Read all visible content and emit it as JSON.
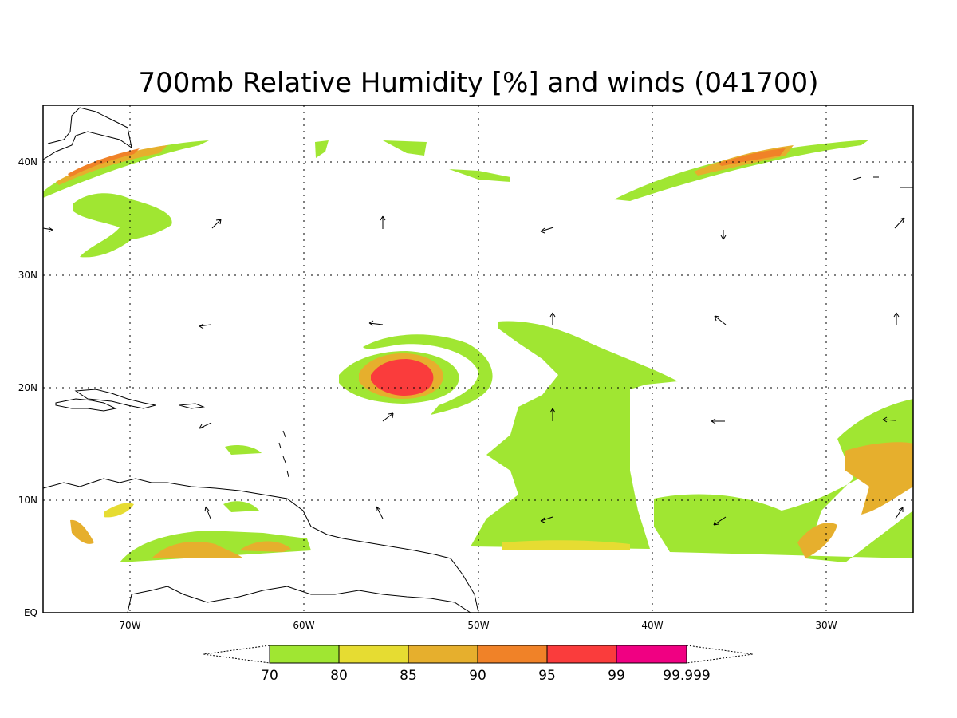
{
  "title": "700mb Relative Humidity [%] and winds (041700)",
  "lat_labels": [
    "40N",
    "30N",
    "20N",
    "10N",
    "EQ"
  ],
  "lon_labels": [
    "70W",
    "60W",
    "50W",
    "40W",
    "30W"
  ],
  "colorbar": {
    "labels": [
      "70",
      "80",
      "85",
      "90",
      "95",
      "99",
      "99.999"
    ],
    "colors": [
      "#a0e632",
      "#e6dc32",
      "#e6af2d",
      "#f08228",
      "#fa3c3c",
      "#f00082"
    ]
  },
  "field_colors": {
    "rh70": "#a0e632",
    "rh80": "#e6dc32",
    "rh85": "#e6af2d",
    "rh90": "#f08228",
    "rh95": "#fa3c3c",
    "rh99": "#f00082"
  }
}
